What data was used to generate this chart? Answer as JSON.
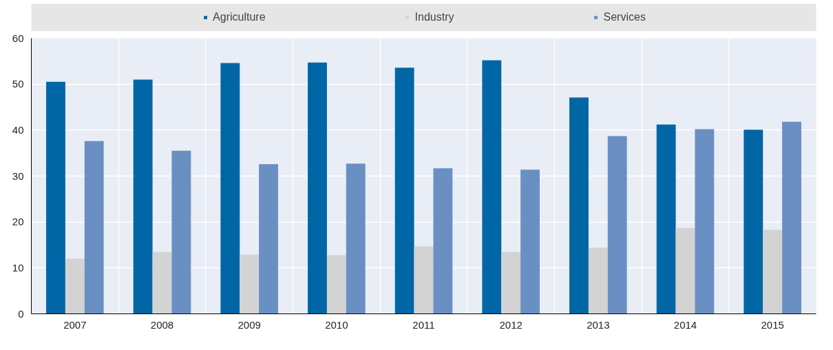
{
  "chart_data": {
    "type": "bar",
    "categories": [
      "2007",
      "2008",
      "2009",
      "2010",
      "2011",
      "2012",
      "2013",
      "2014",
      "2015"
    ],
    "series": [
      {
        "name": "Agriculture",
        "color": "#0066a6",
        "values": [
          50.5,
          51.0,
          54.6,
          54.7,
          53.6,
          55.2,
          47.1,
          41.2,
          40.1
        ]
      },
      {
        "name": "Industry",
        "color": "#d3d3d3",
        "values": [
          12.0,
          13.5,
          12.9,
          12.8,
          14.7,
          13.5,
          14.4,
          18.7,
          18.3
        ]
      },
      {
        "name": "Services",
        "color": "#6a8fc3",
        "values": [
          37.6,
          35.5,
          32.6,
          32.7,
          31.7,
          31.4,
          38.7,
          40.2,
          41.8
        ]
      }
    ],
    "ylim": [
      0,
      60
    ],
    "yticks": [
      0,
      10,
      20,
      30,
      40,
      50,
      60
    ],
    "grid": true,
    "legend": "top"
  }
}
